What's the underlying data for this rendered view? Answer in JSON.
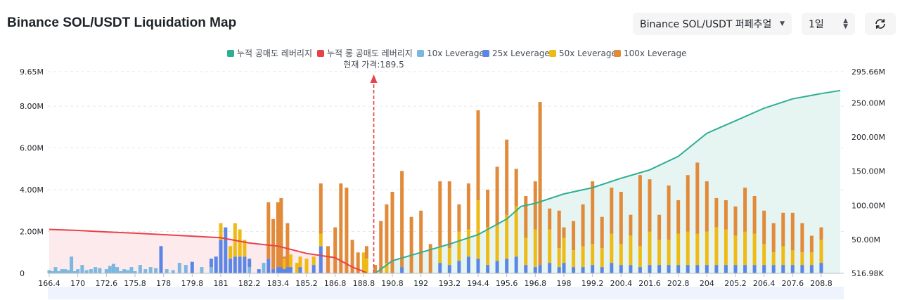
{
  "header": {
    "title": "Binance SOL/USDT Liquidation Map",
    "market_select": "Binance SOL/USDT 퍼페추얼",
    "period_select": "1일",
    "refresh_icon": "refresh-icon"
  },
  "colors": {
    "cum_short": "#2eae94",
    "cum_long": "#e8414a",
    "lev10": "#7ab8e0",
    "lev25": "#5b86e5",
    "lev50": "#eebb16",
    "lev100": "#e08a3a"
  },
  "chart_data": {
    "type": "bar",
    "title": "",
    "current_price_label": "현재 가격:189.5",
    "current_price": 189.5,
    "legend": [
      "누적 공매도 레버리지",
      "누적 롱 공매도 레버리지",
      "10x Leverage",
      "25x Leverage",
      "50x Leverage",
      "100x Leverage"
    ],
    "x_ticks": [
      "166.4",
      "170",
      "172.6",
      "175.8",
      "178",
      "179.8",
      "181",
      "182.2",
      "183.4",
      "185.2",
      "186.8",
      "188.8",
      "190.8",
      "192",
      "193.2",
      "194.4",
      "195.6",
      "196.8",
      "198",
      "199.2",
      "200.4",
      "201.6",
      "202.8",
      "204",
      "205.2",
      "206.4",
      "207.6",
      "208.8"
    ],
    "y_left_ticks": [
      "0",
      "2.00M",
      "4.00M",
      "6.00M",
      "8.00M",
      "9.65M"
    ],
    "y_left_values": [
      0,
      2000000,
      4000000,
      6000000,
      8000000,
      9650000
    ],
    "y_left_range": [
      0,
      9650000
    ],
    "y_right_ticks": [
      "516.98K",
      "50.00M",
      "100.00M",
      "150.00M",
      "200.00M",
      "250.00M",
      "295.66M"
    ],
    "y_right_values": [
      516980,
      50000000,
      100000000,
      150000000,
      200000000,
      250000000,
      295660000
    ],
    "y_right_range": [
      516980,
      295660000
    ],
    "bars_left": [
      {
        "price": 166.4,
        "lev10": 0.15
      },
      {
        "price": 166.8,
        "lev10": 0.1
      },
      {
        "price": 167.2,
        "lev10": 0.3
      },
      {
        "price": 167.6,
        "lev10": 0.1
      },
      {
        "price": 168.0,
        "lev10": 0.2
      },
      {
        "price": 168.4,
        "lev10": 0.2
      },
      {
        "price": 168.8,
        "lev10": 0.15
      },
      {
        "price": 169.2,
        "lev10": 0.8
      },
      {
        "price": 169.6,
        "lev10": 0.1
      },
      {
        "price": 170.0,
        "lev10": 0.2
      },
      {
        "price": 170.4,
        "lev10": 0.4
      },
      {
        "price": 170.8,
        "lev10": 0.15
      },
      {
        "price": 171.2,
        "lev10": 0.2
      },
      {
        "price": 171.6,
        "lev10": 0.3
      },
      {
        "price": 172.0,
        "lev10": 0.25
      },
      {
        "price": 172.6,
        "lev10": 0.2
      },
      {
        "price": 173.0,
        "lev10": 0.35
      },
      {
        "price": 173.4,
        "lev10": 0.45
      },
      {
        "price": 173.8,
        "lev10": 0.3
      },
      {
        "price": 174.2,
        "lev10": 0.1
      },
      {
        "price": 174.6,
        "lev10": 0.2
      },
      {
        "price": 175.0,
        "lev10": 0.15
      },
      {
        "price": 175.4,
        "lev10": 0.3
      },
      {
        "price": 175.8,
        "lev10": 0.1
      },
      {
        "price": 176.2,
        "lev10": 0.4
      },
      {
        "price": 176.6,
        "lev10": 0.2
      },
      {
        "price": 177.0,
        "lev10": 0.3
      },
      {
        "price": 177.4,
        "lev10": 0.25
      },
      {
        "price": 177.8,
        "lev25": 1.3
      },
      {
        "price": 178.2,
        "lev10": 0.2
      },
      {
        "price": 178.6,
        "lev10": 0.15
      },
      {
        "price": 179.0,
        "lev10": 0.5
      },
      {
        "price": 179.4,
        "lev10": 0.4
      },
      {
        "price": 179.8,
        "lev25": 0.55
      },
      {
        "price": 180.2,
        "lev10": 0.3
      },
      {
        "price": 180.6,
        "lev25": 0.4,
        "lev10": 0.3
      },
      {
        "price": 180.8,
        "lev25": 0.8
      },
      {
        "price": 181.0,
        "lev25": 1.6,
        "lev50": 0.8
      },
      {
        "price": 181.2,
        "lev25": 2.2
      },
      {
        "price": 181.4,
        "lev25": 0.7,
        "lev50": 0.6
      },
      {
        "price": 181.6,
        "lev25": 0.8,
        "lev50": 1.6
      },
      {
        "price": 181.8,
        "lev25": 0.8,
        "lev50": 1.3
      },
      {
        "price": 182.0,
        "lev25": 0.8,
        "lev50": 0.8
      },
      {
        "price": 182.2,
        "lev25": 0.4,
        "lev10": 0.3
      },
      {
        "price": 182.6,
        "lev25": 0.2
      },
      {
        "price": 182.8,
        "lev10": 0.5
      },
      {
        "price": 183.0,
        "lev25": 0.7,
        "lev100": 2.7
      },
      {
        "price": 183.2,
        "lev25": 0.2,
        "lev100": 2.4
      },
      {
        "price": 183.4,
        "lev25": 0.3,
        "lev100": 3.1
      },
      {
        "price": 183.6,
        "lev25": 0.3,
        "lev100": 3.3
      },
      {
        "price": 183.8,
        "lev25": 0.2,
        "lev50": 0.5,
        "lev100": 0.1
      },
      {
        "price": 184.0,
        "lev25": 0.3,
        "lev100": 2.1
      },
      {
        "price": 184.2,
        "lev25": 0.3,
        "lev50": 0.6
      },
      {
        "price": 184.6,
        "lev50": 0.5
      },
      {
        "price": 184.8,
        "lev25": 0.3,
        "lev50": 0.5
      },
      {
        "price": 185.2,
        "lev50": 0.7
      },
      {
        "price": 185.6,
        "lev25": 0.4,
        "lev50": 0.4
      },
      {
        "price": 186.0,
        "lev25": 1.3,
        "lev50": 0.6,
        "lev100": 2.4
      },
      {
        "price": 186.4,
        "lev100": 1.3
      },
      {
        "price": 186.8,
        "lev100": 2.2
      },
      {
        "price": 187.2,
        "lev100": 4.3
      },
      {
        "price": 187.6,
        "lev100": 4.1
      },
      {
        "price": 188.0,
        "lev100": 1.6
      },
      {
        "price": 188.4,
        "lev100": 1.0
      },
      {
        "price": 188.8,
        "lev50": 1.0
      },
      {
        "price": 189.0,
        "lev50": 0.7,
        "lev100": 0.6
      }
    ],
    "bars_right": [
      {
        "price": 189.6,
        "lev100": 0.4
      },
      {
        "price": 190.0,
        "lev100": 2.5
      },
      {
        "price": 190.4,
        "lev50": 0.5,
        "lev100": 2.8
      },
      {
        "price": 190.8,
        "lev100": 3.9
      },
      {
        "price": 191.2,
        "lev25": 0.3,
        "lev100": 4.6
      },
      {
        "price": 191.6,
        "lev100": 2.7
      },
      {
        "price": 192.0,
        "lev100": 3.0
      },
      {
        "price": 192.4,
        "lev100": 1.4
      },
      {
        "price": 192.8,
        "lev25": 0.5,
        "lev50": 0.8,
        "lev100": 3.1
      },
      {
        "price": 193.2,
        "lev25": 0.4,
        "lev50": 0.8,
        "lev100": 3.2
      },
      {
        "price": 193.6,
        "lev25": 0.6,
        "lev50": 1.4,
        "lev100": 1.3
      },
      {
        "price": 194.0,
        "lev25": 0.8,
        "lev50": 1.3,
        "lev100": 2.2
      },
      {
        "price": 194.4,
        "lev25": 0.7,
        "lev50": 2.8,
        "lev100": 4.3
      },
      {
        "price": 194.8,
        "lev25": 0.4,
        "lev50": 1.8,
        "lev100": 1.8
      },
      {
        "price": 195.2,
        "lev25": 0.6,
        "lev50": 1.7,
        "lev100": 2.8
      },
      {
        "price": 195.6,
        "lev25": 0.7,
        "lev50": 2.1,
        "lev100": 3.6
      },
      {
        "price": 196.0,
        "lev25": 0.8,
        "lev50": 2.4,
        "lev100": 1.8
      },
      {
        "price": 196.4,
        "lev25": 0.4,
        "lev50": 1.3,
        "lev100": 2.0
      },
      {
        "price": 196.8,
        "lev25": 0.3,
        "lev50": 1.8,
        "lev100": 2.3
      },
      {
        "price": 197.0,
        "lev25": 0.4,
        "lev100": 7.8
      },
      {
        "price": 197.4,
        "lev25": 0.5,
        "lev50": 1.6,
        "lev100": 1.0
      },
      {
        "price": 197.8,
        "lev25": 0.3,
        "lev50": 0.9,
        "lev100": 1.8
      },
      {
        "price": 198.0,
        "lev25": 0.5,
        "lev50": 1.2,
        "lev100": 0.5
      },
      {
        "price": 198.4,
        "lev25": 0.3,
        "lev50": 0.8,
        "lev100": 1.4
      },
      {
        "price": 198.8,
        "lev25": 0.3,
        "lev50": 1.0,
        "lev100": 2.0
      },
      {
        "price": 199.2,
        "lev25": 0.4,
        "lev50": 1.0,
        "lev100": 3.0
      },
      {
        "price": 199.6,
        "lev25": 0.3,
        "lev50": 0.9,
        "lev100": 1.5
      },
      {
        "price": 200.0,
        "lev25": 0.5,
        "lev50": 1.4,
        "lev100": 2.2
      },
      {
        "price": 200.4,
        "lev25": 0.4,
        "lev50": 1.0,
        "lev100": 2.5
      },
      {
        "price": 200.8,
        "lev25": 0.4,
        "lev50": 1.4,
        "lev100": 1.0
      },
      {
        "price": 201.2,
        "lev25": 0.3,
        "lev50": 1.0,
        "lev100": 3.4
      },
      {
        "price": 201.6,
        "lev25": 0.4,
        "lev50": 1.6,
        "lev100": 2.5
      },
      {
        "price": 202.0,
        "lev25": 0.4,
        "lev50": 1.2,
        "lev100": 1.2
      },
      {
        "price": 202.4,
        "lev25": 0.4,
        "lev50": 1.2,
        "lev100": 2.6
      },
      {
        "price": 202.8,
        "lev25": 0.4,
        "lev50": 1.5,
        "lev100": 1.6
      },
      {
        "price": 203.2,
        "lev25": 0.4,
        "lev50": 1.6,
        "lev100": 2.7
      },
      {
        "price": 203.6,
        "lev25": 0.4,
        "lev50": 1.5,
        "lev100": 3.4
      },
      {
        "price": 204.0,
        "lev25": 0.4,
        "lev50": 1.6,
        "lev100": 2.4
      },
      {
        "price": 204.4,
        "lev25": 0.4,
        "lev50": 1.8,
        "lev100": 1.4
      },
      {
        "price": 204.8,
        "lev25": 0.4,
        "lev50": 1.7,
        "lev100": 1.4
      },
      {
        "price": 205.2,
        "lev25": 0.4,
        "lev50": 1.4,
        "lev100": 1.4
      },
      {
        "price": 205.6,
        "lev25": 0.4,
        "lev50": 1.6,
        "lev100": 2.1
      },
      {
        "price": 206.0,
        "lev25": 0.4,
        "lev50": 1.5,
        "lev100": 1.8
      },
      {
        "price": 206.4,
        "lev25": 0.4,
        "lev50": 1.0,
        "lev100": 1.6
      },
      {
        "price": 206.8,
        "lev25": 0.4,
        "lev50": 0.6,
        "lev100": 1.4
      },
      {
        "price": 207.2,
        "lev25": 0.4,
        "lev50": 0.9,
        "lev100": 1.6
      },
      {
        "price": 207.6,
        "lev25": 0.4,
        "lev50": 0.7,
        "lev100": 1.8
      },
      {
        "price": 208.0,
        "lev25": 0.4,
        "lev50": 0.6,
        "lev100": 1.4
      },
      {
        "price": 208.4,
        "lev25": 0.4,
        "lev50": 0.6,
        "lev100": 0.8
      },
      {
        "price": 208.8,
        "lev25": 0.5,
        "lev50": 1.1,
        "lev100": 0.6
      }
    ],
    "cum_long_line": [
      [
        166.4,
        2.1
      ],
      [
        170,
        2.05
      ],
      [
        172.6,
        1.98
      ],
      [
        175.8,
        1.92
      ],
      [
        178,
        1.85
      ],
      [
        179.8,
        1.78
      ],
      [
        181,
        1.7
      ],
      [
        182.2,
        1.45
      ],
      [
        183.4,
        1.3
      ],
      [
        185.2,
        0.95
      ],
      [
        186.8,
        0.75
      ],
      [
        188.0,
        0.3
      ],
      [
        189.0,
        0.03
      ]
    ],
    "cum_short_line": [
      [
        189.6,
        0.0
      ],
      [
        190.8,
        0.6
      ],
      [
        192,
        1.0
      ],
      [
        193.2,
        1.4
      ],
      [
        194.4,
        1.85
      ],
      [
        195.6,
        2.6
      ],
      [
        196.2,
        3.2
      ],
      [
        196.8,
        3.35
      ],
      [
        198,
        3.8
      ],
      [
        199.2,
        4.1
      ],
      [
        200.4,
        4.55
      ],
      [
        201.6,
        4.95
      ],
      [
        202.8,
        5.6
      ],
      [
        204,
        6.7
      ],
      [
        205.2,
        7.3
      ],
      [
        206.4,
        7.9
      ],
      [
        207.6,
        8.35
      ],
      [
        208.8,
        8.6
      ],
      [
        209.6,
        8.75
      ]
    ]
  }
}
